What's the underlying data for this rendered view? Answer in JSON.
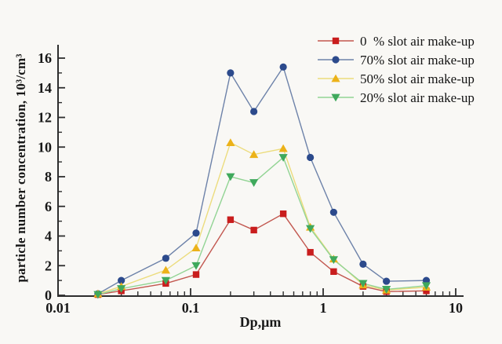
{
  "figure": {
    "background": "#f9f8f5"
  },
  "colors": {
    "axis": "#2e2e2e",
    "text": "#181818"
  },
  "chart_data": {
    "type": "line",
    "title": "",
    "xlabel": "Dp,μm",
    "ylabel": "particle number concentration, 10³/cm³",
    "x_scale": "log",
    "xlim": [
      0.01,
      10
    ],
    "ylim": [
      0,
      16
    ],
    "x_ticks": [
      0.01,
      0.1,
      1,
      10
    ],
    "x_tick_labels": [
      "0.01",
      "0.1",
      "1",
      "10"
    ],
    "y_ticks": [
      0,
      2,
      4,
      6,
      8,
      10,
      12,
      14,
      16
    ],
    "grid": false,
    "legend_position": "top-right",
    "x": [
      0.02,
      0.03,
      0.065,
      0.11,
      0.2,
      0.3,
      0.5,
      0.8,
      1.2,
      2,
      3,
      6
    ],
    "series": [
      {
        "name": "0  % slot air make-up",
        "marker": "square",
        "marker_color": "#c91d1d",
        "line_color": "#c2574f",
        "values": [
          0.05,
          0.3,
          0.8,
          1.4,
          5.1,
          4.4,
          5.5,
          2.9,
          1.6,
          0.6,
          0.25,
          0.3
        ]
      },
      {
        "name": "70% slot air make-up",
        "marker": "circle",
        "marker_color": "#2c4a8c",
        "line_color": "#6d82a9",
        "values": [
          0.1,
          1.0,
          2.5,
          4.2,
          15.0,
          12.4,
          15.4,
          9.3,
          5.6,
          2.1,
          0.95,
          1.0
        ]
      },
      {
        "name": "50% slot air make-up",
        "marker": "triangle-up",
        "marker_color": "#ecb219",
        "line_color": "#ecdc7d",
        "values": [
          0.1,
          0.6,
          1.7,
          3.2,
          10.3,
          9.5,
          9.9,
          4.6,
          2.45,
          0.7,
          0.35,
          0.55
        ]
      },
      {
        "name": "20% slot air make-up",
        "marker": "triangle-down",
        "marker_color": "#3fa95c",
        "line_color": "#92d494",
        "values": [
          0.05,
          0.45,
          1.0,
          2.0,
          8.0,
          7.6,
          9.3,
          4.5,
          2.4,
          0.8,
          0.4,
          0.65
        ]
      }
    ]
  }
}
